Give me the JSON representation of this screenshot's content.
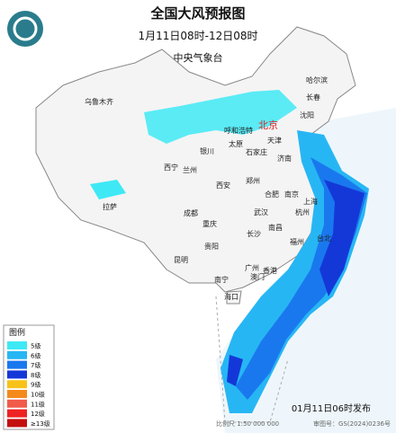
{
  "header": {
    "title": "全国大风预报图",
    "subtitle": "1月11日08时-12日08时",
    "issuer": "中央气象台"
  },
  "legend": {
    "title": "图例",
    "items": [
      {
        "label": "5级",
        "color": "#3ee9f5"
      },
      {
        "label": "6级",
        "color": "#27b6f4"
      },
      {
        "label": "7级",
        "color": "#1a78ee"
      },
      {
        "label": "8级",
        "color": "#1438d8"
      },
      {
        "label": "9级",
        "color": "#f7c21a"
      },
      {
        "label": "10级",
        "color": "#f48a1c"
      },
      {
        "label": "11级",
        "color": "#f25a4a"
      },
      {
        "label": "12级",
        "color": "#ee2222"
      },
      {
        "label": "≥13级",
        "color": "#c40f0f"
      }
    ]
  },
  "cities": [
    "乌鲁木齐",
    "哈尔滨",
    "长春",
    "沈阳",
    "呼和浩特",
    "北京",
    "天津",
    "太原",
    "石家庄",
    "银川",
    "济南",
    "西宁",
    "兰州",
    "郑州",
    "西安",
    "合肥",
    "南京",
    "上海",
    "拉萨",
    "成都",
    "武汉",
    "杭州",
    "重庆",
    "南昌",
    "长沙",
    "贵阳",
    "福州",
    "台北",
    "昆明",
    "广州",
    "香港",
    "澳门",
    "南宁",
    "海口"
  ],
  "footer": {
    "issued": "01月11日06时发布",
    "scale": "比例尺 1:50 000 000",
    "approval": "审图号：GS(2024)0236号"
  }
}
